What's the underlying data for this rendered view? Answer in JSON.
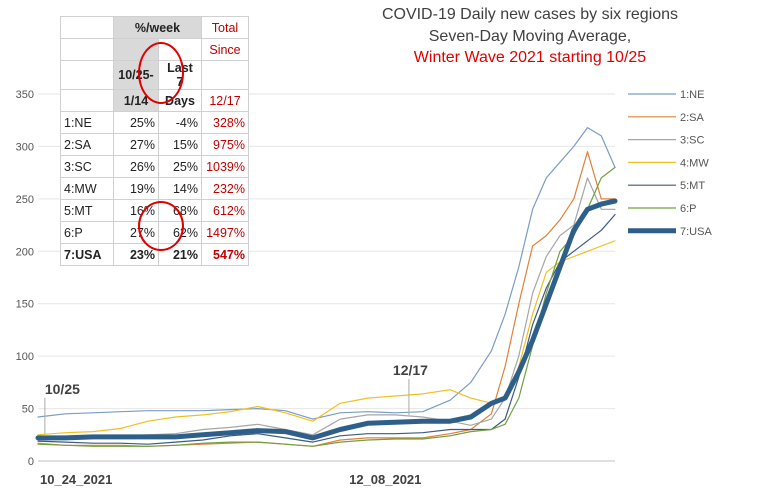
{
  "chart_data": {
    "type": "line",
    "title": "COVID-19 Daily new cases by six regions",
    "subtitle": "Seven-Day Moving Average,",
    "subtitle2": "Winter Wave 2021 starting 10/25",
    "ylim": [
      0,
      350
    ],
    "yticks": [
      0,
      50,
      100,
      150,
      200,
      250,
      300,
      350
    ],
    "xlim": [
      0,
      84
    ],
    "xtick_labels": [
      {
        "x": 0,
        "label": "10_24_2021"
      },
      {
        "x": 45,
        "label": "12_08_2021"
      }
    ],
    "annotations": [
      {
        "label": "10/25",
        "x": 1,
        "y": 22
      },
      {
        "label": "12/17",
        "x": 54,
        "y": 40
      }
    ],
    "x": [
      0,
      4,
      8,
      12,
      16,
      20,
      24,
      28,
      32,
      36,
      40,
      44,
      48,
      52,
      56,
      60,
      63,
      66,
      68,
      70,
      72,
      74,
      76,
      78,
      80,
      82,
      84
    ],
    "series": [
      {
        "name": "1:NE",
        "color": "#7a9cc6",
        "width": 1.2,
        "values": [
          42,
          45,
          46,
          47,
          48,
          48,
          48,
          49,
          50,
          48,
          40,
          46,
          47,
          46,
          47,
          58,
          75,
          105,
          140,
          185,
          240,
          270,
          285,
          300,
          318,
          310,
          280
        ]
      },
      {
        "name": "2:SA",
        "color": "#e0813a",
        "width": 1.2,
        "values": [
          17,
          15,
          15,
          15,
          14,
          15,
          16,
          17,
          18,
          16,
          14,
          20,
          22,
          22,
          22,
          26,
          30,
          45,
          90,
          150,
          205,
          215,
          230,
          250,
          295,
          250,
          250
        ]
      },
      {
        "name": "3:SC",
        "color": "#a6a6a6",
        "width": 1.2,
        "values": [
          22,
          22,
          24,
          24,
          25,
          26,
          30,
          32,
          35,
          30,
          25,
          40,
          44,
          44,
          42,
          38,
          34,
          40,
          60,
          100,
          160,
          195,
          215,
          225,
          270,
          240,
          240
        ]
      },
      {
        "name": "4:MW",
        "color": "#f0c020",
        "width": 1.2,
        "values": [
          25,
          27,
          28,
          31,
          38,
          42,
          44,
          47,
          52,
          46,
          38,
          55,
          60,
          62,
          64,
          68,
          60,
          55,
          60,
          90,
          140,
          180,
          190,
          195,
          200,
          205,
          210
        ]
      },
      {
        "name": "5:MT",
        "color": "#3c5a80",
        "width": 1.2,
        "values": [
          19,
          18,
          17,
          17,
          16,
          18,
          20,
          24,
          26,
          22,
          18,
          24,
          26,
          26,
          27,
          30,
          30,
          30,
          40,
          80,
          130,
          165,
          190,
          200,
          210,
          220,
          235
        ]
      },
      {
        "name": "6:P",
        "color": "#70a040",
        "width": 1.2,
        "values": [
          16,
          15,
          14,
          14,
          14,
          15,
          17,
          18,
          18,
          16,
          14,
          18,
          20,
          21,
          21,
          24,
          28,
          30,
          35,
          60,
          110,
          160,
          200,
          215,
          240,
          270,
          280
        ]
      },
      {
        "name": "7:USA",
        "color": "#2e5f8a",
        "width": 5,
        "values": [
          22,
          22,
          23,
          23,
          23,
          23,
          25,
          27,
          29,
          28,
          22,
          30,
          36,
          37,
          38,
          38,
          42,
          55,
          60,
          85,
          115,
          150,
          185,
          220,
          240,
          245,
          248
        ]
      }
    ]
  },
  "table": {
    "header_top": {
      "week": "%/week",
      "total": "Total"
    },
    "header_mid": {
      "since": "Since"
    },
    "header_low": {
      "col1a": "10/25-",
      "col2a": "Last 7"
    },
    "header_bot": {
      "col1b": "1/14",
      "col2b": "Days",
      "since_date": "12/17"
    },
    "rows": [
      {
        "region": "1:NE",
        "c1": "25%",
        "c2": "-4%",
        "c3": "328%"
      },
      {
        "region": "2:SA",
        "c1": "27%",
        "c2": "15%",
        "c3": "975%"
      },
      {
        "region": "3:SC",
        "c1": "26%",
        "c2": "25%",
        "c3": "1039%"
      },
      {
        "region": "4:MW",
        "c1": "19%",
        "c2": "14%",
        "c3": "232%"
      },
      {
        "region": "5:MT",
        "c1": "16%",
        "c2": "68%",
        "c3": "612%"
      },
      {
        "region": "6:P",
        "c1": "27%",
        "c2": "62%",
        "c3": "1497%"
      },
      {
        "region": "7:USA",
        "c1": "23%",
        "c2": "21%",
        "c3": "547%"
      }
    ]
  }
}
